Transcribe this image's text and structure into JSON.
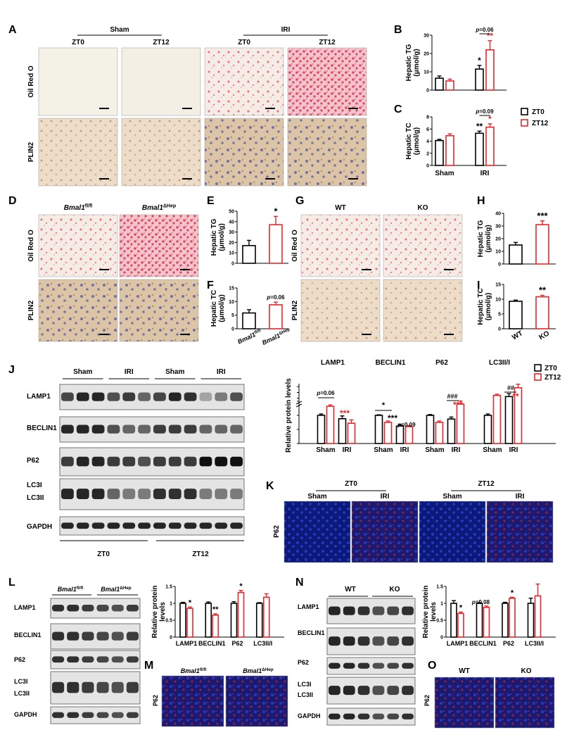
{
  "panel_letters": [
    "A",
    "B",
    "C",
    "D",
    "E",
    "F",
    "G",
    "H",
    "I",
    "J",
    "K",
    "L",
    "M",
    "N",
    "O"
  ],
  "panelA": {
    "groups": [
      "Sham",
      "IRI"
    ],
    "timepoints": [
      "ZT0",
      "ZT12",
      "ZT0",
      "ZT12"
    ],
    "rows": [
      "Oil Red O",
      "PLIN2"
    ]
  },
  "panelD": {
    "columns": [
      {
        "base": "Bmal1",
        "sup": "fl/fl"
      },
      {
        "base": "Bmal1",
        "sup": "ΔHep"
      }
    ],
    "rows": [
      "Oil Red O",
      "PLIN2"
    ]
  },
  "panelG": {
    "columns": [
      "WT",
      "KO"
    ],
    "rows": [
      "Oil Red O",
      "PLIN2"
    ]
  },
  "legend_main": {
    "zt0": "ZT0",
    "zt12": "ZT12"
  },
  "colors": {
    "zt0": "#000000",
    "zt12": "#e8262b",
    "stain_red": "#d81d3e",
    "stain_brown": "#a8743d",
    "nuclei": "#2b3a9c",
    "fluor_bg": "#0b1a78"
  },
  "panelJ": {
    "blot_rows": [
      "LAMP1",
      "BECLIN1",
      "P62",
      "LC3I",
      "LC3II",
      "GAPDH"
    ],
    "top_groups": [
      "Sham",
      "IRI",
      "Sham",
      "IRI"
    ],
    "bottom_groups": [
      "ZT0",
      "ZT12"
    ]
  },
  "panelK": {
    "groups": [
      "ZT0",
      "ZT12"
    ],
    "subgroups": [
      "Sham",
      "IRI",
      "Sham",
      "IRI"
    ],
    "row": "P62"
  },
  "panelL": {
    "columns": [
      {
        "base": "Bmal1",
        "sup": "fl/fl"
      },
      {
        "base": "Bmal1",
        "sup": "ΔHep"
      }
    ],
    "blot_rows": [
      "LAMP1",
      "BECLIN1",
      "P62",
      "LC3I",
      "LC3II",
      "GAPDH"
    ]
  },
  "panelM": {
    "columns": [
      {
        "base": "Bmal1",
        "sup": "fl/fl"
      },
      {
        "base": "Bmal1",
        "sup": "ΔHep"
      }
    ],
    "row": "P62"
  },
  "panelN": {
    "columns": [
      "WT",
      "KO"
    ],
    "blot_rows": [
      "LAMP1",
      "BECLIN1",
      "P62",
      "LC3I",
      "LC3II",
      "GAPDH"
    ]
  },
  "panelO": {
    "columns": [
      "WT",
      "KO"
    ],
    "row": "P62"
  },
  "chart_data": [
    {
      "id": "B",
      "type": "bar",
      "ylabel": "Hepatic TG\n(μmol/g)",
      "ylim": [
        0,
        30
      ],
      "yticks": [
        0,
        10,
        20,
        30
      ],
      "categories": [
        "Sham",
        "IRI"
      ],
      "series": [
        {
          "name": "ZT0",
          "values": [
            6.5,
            11.5
          ],
          "errors": [
            1.2,
            2.0
          ]
        },
        {
          "name": "ZT12",
          "values": [
            5.0,
            22.0
          ],
          "errors": [
            1.0,
            5.0
          ]
        }
      ],
      "annotations": [
        {
          "series": "ZT0",
          "category": "IRI",
          "text": "*"
        },
        {
          "series": "ZT12",
          "category": "IRI",
          "text": "**"
        },
        {
          "text": "p=0.06",
          "bracket": [
            "IRI ZT0",
            "IRI ZT12"
          ]
        }
      ]
    },
    {
      "id": "C",
      "type": "bar",
      "ylabel": "Hepatic TC\n(μmol/g)",
      "ylim": [
        0,
        8
      ],
      "yticks": [
        0,
        2,
        4,
        6,
        8
      ],
      "categories": [
        "Sham",
        "IRI"
      ],
      "series": [
        {
          "name": "ZT0",
          "values": [
            4.1,
            5.3
          ],
          "errors": [
            0.2,
            0.35
          ]
        },
        {
          "name": "ZT12",
          "values": [
            4.9,
            6.3
          ],
          "errors": [
            0.3,
            0.55
          ]
        }
      ],
      "annotations": [
        {
          "series": "ZT0",
          "category": "IRI",
          "text": "**"
        },
        {
          "series": "ZT12",
          "category": "IRI",
          "text": "*"
        },
        {
          "text": "p=0.09",
          "bracket": [
            "IRI ZT0",
            "IRI ZT12"
          ]
        }
      ],
      "legend": [
        "ZT0",
        "ZT12"
      ]
    },
    {
      "id": "E",
      "type": "bar",
      "ylabel": "Hepatic TG\n(μmol/g)",
      "ylim": [
        0,
        50
      ],
      "yticks": [
        0,
        10,
        20,
        30,
        40,
        50
      ],
      "categories": [
        "Bmal1 fl/fl",
        "Bmal1 ΔHep"
      ],
      "series": [
        {
          "name": "",
          "values": [
            17,
            37
          ],
          "errors": [
            5,
            8
          ]
        }
      ],
      "colors_by_category": [
        "#000000",
        "#e8262b"
      ],
      "annotations": [
        {
          "category": "Bmal1 ΔHep",
          "text": "*"
        }
      ]
    },
    {
      "id": "F",
      "type": "bar",
      "ylabel": "Hepatic TC\n(μmol/g)",
      "ylim": [
        0,
        15
      ],
      "yticks": [
        0,
        5,
        10,
        15
      ],
      "categories": [
        "Bmal1 fl/fl",
        "Bmal1 ΔHep"
      ],
      "x_tick_labels": [
        {
          "base": "Bmal1",
          "sup": "fl/fl"
        },
        {
          "base": "Bmal1",
          "sup": "ΔHep"
        }
      ],
      "series": [
        {
          "name": "",
          "values": [
            5.8,
            8.8
          ],
          "errors": [
            1.2,
            1.0
          ]
        }
      ],
      "colors_by_category": [
        "#000000",
        "#e8262b"
      ],
      "annotations": [
        {
          "category": "Bmal1 ΔHep",
          "text": "p=0.06"
        }
      ]
    },
    {
      "id": "H",
      "type": "bar",
      "ylabel": "Hepatic TG\n(μmol/g)",
      "ylim": [
        0,
        40
      ],
      "yticks": [
        0,
        10,
        20,
        30,
        40
      ],
      "categories": [
        "WT",
        "KO"
      ],
      "series": [
        {
          "name": "",
          "values": [
            15,
            31
          ],
          "errors": [
            2,
            3
          ]
        }
      ],
      "colors_by_category": [
        "#000000",
        "#e8262b"
      ],
      "annotations": [
        {
          "category": "KO",
          "text": "***"
        }
      ]
    },
    {
      "id": "I",
      "type": "bar",
      "ylabel": "Hepatic TC\n(μmol/g)",
      "ylim": [
        0,
        15
      ],
      "yticks": [
        0,
        5,
        10,
        15
      ],
      "categories": [
        "WT",
        "KO"
      ],
      "x_tick_labels": [
        "WT",
        "KO"
      ],
      "series": [
        {
          "name": "",
          "values": [
            9.3,
            10.8
          ],
          "errors": [
            0.4,
            0.5
          ]
        }
      ],
      "colors_by_category": [
        "#000000",
        "#e8262b"
      ],
      "annotations": [
        {
          "category": "KO",
          "text": "**"
        }
      ]
    },
    {
      "id": "J",
      "type": "bar",
      "ylabel": "Relative protein levels",
      "y_segments": [
        {
          "range": [
            0,
            1.5
          ],
          "ticks": [
            0.0,
            0.5,
            1.0,
            1.5
          ]
        },
        {
          "range": [
            1.5,
            4.5
          ],
          "ticks": [
            2,
            3,
            4
          ]
        }
      ],
      "groups": [
        "LAMP1",
        "BECLIN1",
        "P62",
        "LC3II/I"
      ],
      "categories": [
        "Sham",
        "IRI"
      ],
      "series": [
        {
          "name": "ZT0",
          "values": {
            "LAMP1": [
              1.0,
              0.88
            ],
            "BECLIN1": [
              1.0,
              0.62
            ],
            "P62": [
              1.0,
              0.87
            ],
            "LC3II/I": [
              1.0,
              2.3
            ]
          },
          "errors": {
            "LAMP1": [
              0.05,
              0.1
            ],
            "BECLIN1": [
              0.02,
              0.05
            ],
            "P62": [
              0.03,
              0.07
            ],
            "LC3II/I": [
              0.05,
              0.5
            ]
          }
        },
        {
          "name": "ZT12",
          "values": {
            "LAMP1": [
              1.32,
              0.72
            ],
            "BECLIN1": [
              0.75,
              0.6
            ],
            "P62": [
              0.75,
              1.4
            ],
            "LC3II/I": [
              2.5,
              3.8
            ]
          },
          "errors": {
            "LAMP1": [
              0.05,
              0.12
            ],
            "BECLIN1": [
              0.05,
              0.04
            ],
            "P62": [
              0.05,
              0.15
            ],
            "LC3II/I": [
              0.2,
              0.6
            ]
          }
        }
      ],
      "annotations": [
        "p=0.06",
        "***",
        "*",
        "***",
        "p=0.09",
        "###",
        "***",
        "##",
        "**"
      ],
      "legend": [
        "ZT0",
        "ZT12"
      ]
    },
    {
      "id": "L",
      "type": "bar",
      "ylabel": "Relative protein\nlevels",
      "ylim": [
        0,
        1.5
      ],
      "yticks": [
        0.0,
        0.5,
        1.0,
        1.5
      ],
      "categories": [
        "LAMP1",
        "BECLIN1",
        "P62",
        "LC3II/I"
      ],
      "series": [
        {
          "name": "Bmal1 fl/fl",
          "values": [
            1.0,
            1.0,
            1.0,
            1.0
          ],
          "errors": [
            0.03,
            0.04,
            0.05,
            0.02
          ]
        },
        {
          "name": "Bmal1 ΔHep",
          "values": [
            0.85,
            0.65,
            1.32,
            1.18
          ],
          "errors": [
            0.04,
            0.04,
            0.06,
            0.1
          ]
        }
      ],
      "annotations": [
        {
          "category": "LAMP1",
          "text": "*"
        },
        {
          "category": "BECLIN1",
          "text": "**"
        },
        {
          "category": "P62",
          "text": "*"
        }
      ]
    },
    {
      "id": "N",
      "type": "bar",
      "ylabel": "Relative protein\nlevels",
      "ylim": [
        0,
        1.5
      ],
      "yticks": [
        0.0,
        0.5,
        1.0,
        1.5
      ],
      "categories": [
        "LAMP1",
        "BECLIN1",
        "P62",
        "LC3II/I"
      ],
      "series": [
        {
          "name": "WT",
          "values": [
            1.0,
            1.0,
            1.0,
            1.0
          ],
          "errors": [
            0.08,
            0.02,
            0.03,
            0.15
          ]
        },
        {
          "name": "KO",
          "values": [
            0.7,
            0.88,
            1.15,
            1.22
          ],
          "errors": [
            0.04,
            0.04,
            0.03,
            0.35
          ]
        }
      ],
      "annotations": [
        {
          "category": "LAMP1",
          "text": "*"
        },
        {
          "category": "BECLIN1",
          "text": "p=0.08"
        },
        {
          "category": "P62",
          "text": "*"
        }
      ]
    }
  ]
}
